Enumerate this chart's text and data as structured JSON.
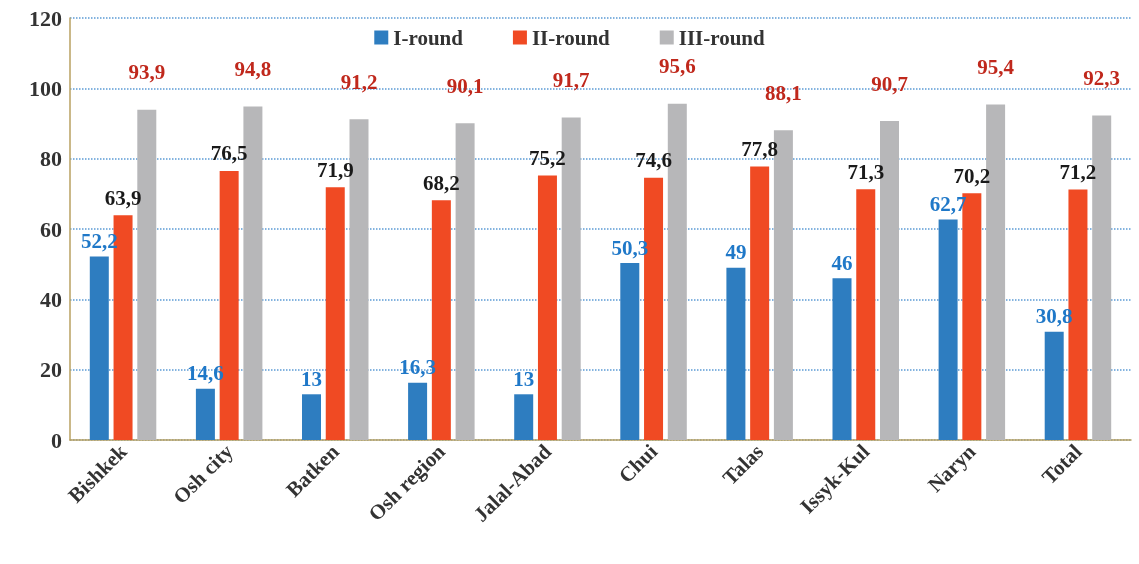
{
  "chart_data": {
    "type": "bar",
    "categories": [
      "Bishkek",
      "Osh city",
      "Batken",
      "Osh region",
      "Jalal-Abad",
      "Chui",
      "Talas",
      "Issyk-Kul",
      "Naryn",
      "Total"
    ],
    "series": [
      {
        "name": "I-round",
        "color": "#2e7dc0",
        "values": [
          52.2,
          14.6,
          13,
          16.3,
          13,
          50.3,
          49,
          46,
          62.7,
          30.8
        ],
        "value_labels": [
          "52,2",
          "14,6",
          "13",
          "16,3",
          "13",
          "50,3",
          "49",
          "46",
          "62,7",
          "30,8"
        ]
      },
      {
        "name": "II-round",
        "color": "#f04a23",
        "values": [
          63.9,
          76.5,
          71.9,
          68.2,
          75.2,
          74.6,
          77.8,
          71.3,
          70.2,
          71.2
        ],
        "value_labels": [
          "63,9",
          "76,5",
          "71,9",
          "68,2",
          "75,2",
          "74,6",
          "77,8",
          "71,3",
          "70,2",
          "71,2"
        ]
      },
      {
        "name": "III-round",
        "color": "#b7b7b9",
        "values": [
          93.9,
          94.8,
          91.2,
          90.1,
          91.7,
          95.6,
          88.1,
          90.7,
          95.4,
          92.3
        ],
        "value_labels": [
          "93,9",
          "94,8",
          "91,2",
          "90,1",
          "91,7",
          "95,6",
          "88,1",
          "90,7",
          "95,4",
          "92,3"
        ]
      }
    ],
    "ylim": [
      0,
      120
    ],
    "yticks": [
      0,
      20,
      40,
      60,
      80,
      100,
      120
    ],
    "grid": "y",
    "legend": "top"
  }
}
